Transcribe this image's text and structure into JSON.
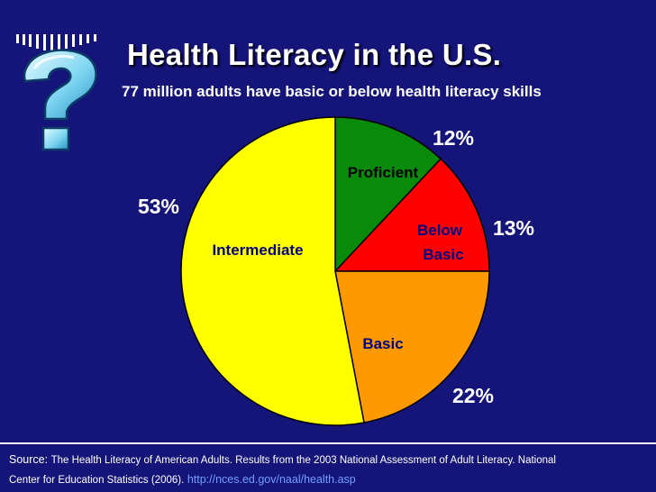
{
  "slide": {
    "title": "Health Literacy in the U.S.",
    "subtitle": "77 million adults have basic or below health literacy skills",
    "question_icon": "question-mark-icon"
  },
  "chart_data": {
    "type": "pie",
    "title": "",
    "slices": [
      {
        "label": "Proficient",
        "value": 12,
        "pct_label": "12%",
        "color": "#0a8a0a",
        "label_color": "#000000"
      },
      {
        "label": "Below Basic",
        "value": 13,
        "pct_label": "13%",
        "color": "#ff0000",
        "label_color": "#000080"
      },
      {
        "label": "Basic",
        "value": 22,
        "pct_label": "22%",
        "color": "#ff9900",
        "label_color": "#000080"
      },
      {
        "label": "Intermediate",
        "value": 53,
        "pct_label": "53%",
        "color": "#ffff00",
        "label_color": "#000080"
      }
    ],
    "start_angle_deg": 0,
    "direction": "clockwise"
  },
  "source": {
    "prefix": "Source:",
    "citation_line1": "The Health Literacy of American Adults. Results from the 2003 National Assessment of Adult Literacy. National",
    "citation_line2": "Center for Education Statistics (2006).",
    "url": "http://nces.ed.gov/naal/health.asp"
  },
  "colors": {
    "background": "#141479",
    "text": "#ffffff",
    "link": "#6fa0ff"
  }
}
